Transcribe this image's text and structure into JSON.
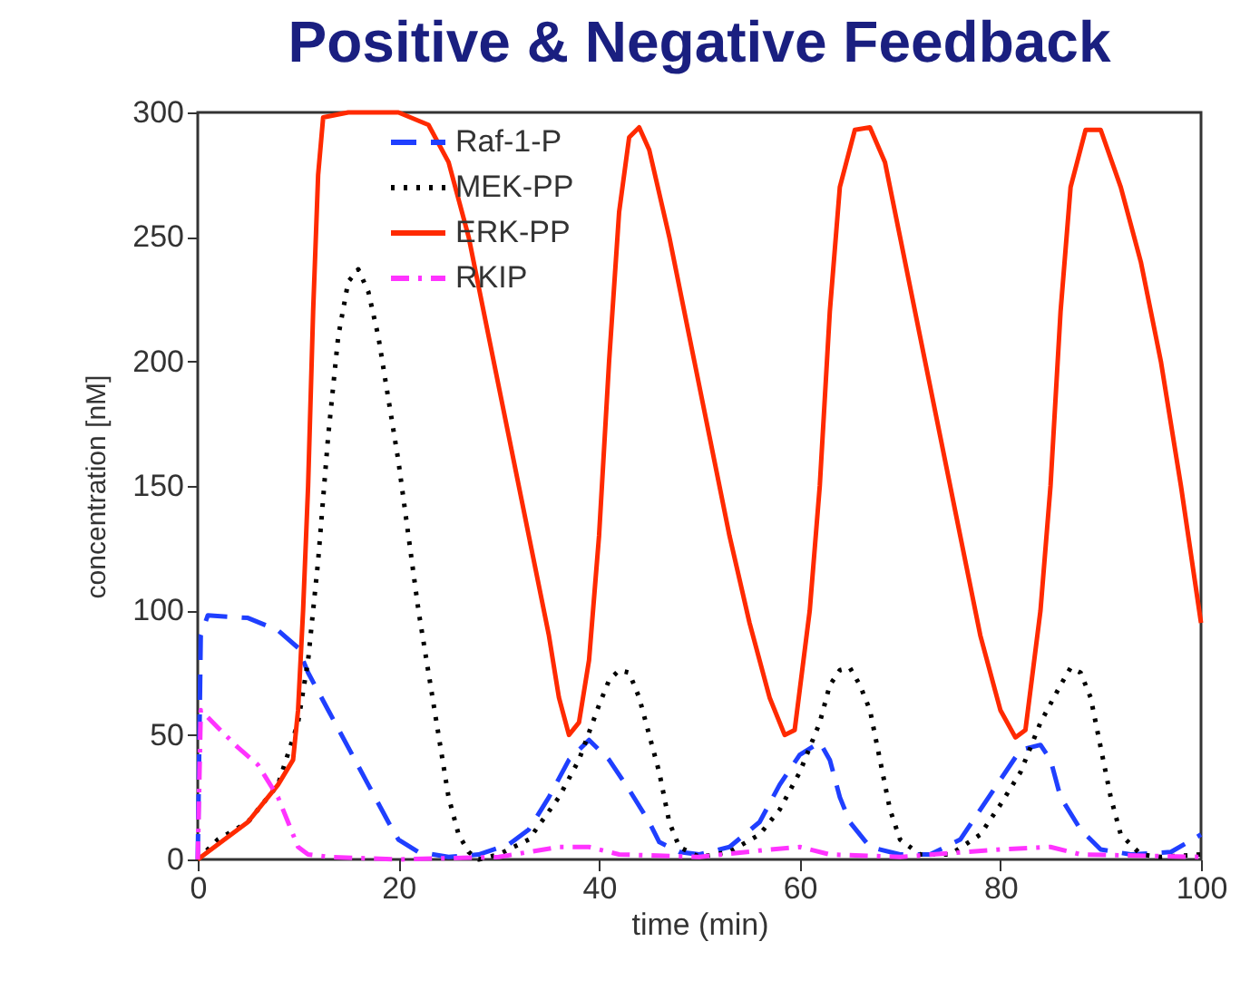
{
  "chart_data": {
    "type": "line",
    "title": "Positive & Negative Feedback",
    "xlabel": "time  (min)",
    "ylabel": "concentration [nM]",
    "xlim": [
      0,
      100
    ],
    "xticks": [
      0,
      20,
      40,
      60,
      80,
      100
    ],
    "ylim": [
      0,
      300
    ],
    "yticks": [
      0,
      50,
      100,
      150,
      200,
      250,
      300
    ],
    "grid": false,
    "legend": "top",
    "marker": "none",
    "series": [
      {
        "name": "Raf-1-P",
        "color": "#1f3fff",
        "line_style": "dashed",
        "x": [
          0,
          0.3,
          1,
          5,
          8,
          10,
          11,
          13,
          15,
          17,
          19,
          20,
          22,
          25,
          28,
          31,
          33,
          35,
          37,
          39,
          41,
          43,
          45,
          46,
          48,
          50,
          53,
          56,
          58,
          60,
          62,
          63,
          64,
          65,
          67,
          70,
          73,
          76,
          78,
          80,
          82,
          84,
          85,
          86,
          88,
          90,
          93,
          97,
          100
        ],
        "values": [
          0,
          90,
          98,
          97,
          92,
          85,
          75,
          60,
          45,
          30,
          15,
          8,
          3,
          1,
          2,
          6,
          12,
          25,
          40,
          48,
          40,
          28,
          15,
          7,
          3,
          2,
          5,
          15,
          30,
          42,
          47,
          40,
          25,
          15,
          5,
          2,
          2,
          8,
          20,
          32,
          44,
          46,
          40,
          25,
          12,
          4,
          2,
          3,
          10
        ]
      },
      {
        "name": "MEK-PP",
        "color": "#000000",
        "line_style": "dotted",
        "x": [
          0,
          2,
          5,
          8,
          10,
          11,
          12,
          13,
          14,
          15,
          16,
          17,
          18,
          19,
          20,
          21,
          22,
          23,
          24,
          25,
          26,
          27,
          28,
          30,
          33,
          36,
          38,
          40,
          41,
          42,
          43,
          44,
          45,
          46,
          47,
          48,
          50,
          53,
          56,
          58,
          60,
          62,
          63,
          64,
          65,
          66,
          67,
          68,
          69,
          70,
          72,
          75,
          78,
          80,
          82,
          84,
          86,
          87,
          88,
          89,
          90,
          91,
          92,
          94,
          96,
          100
        ],
        "values": [
          0,
          8,
          15,
          30,
          55,
          80,
          120,
          170,
          210,
          232,
          237,
          228,
          210,
          185,
          160,
          130,
          100,
          75,
          50,
          25,
          10,
          3,
          0,
          2,
          8,
          25,
          40,
          62,
          72,
          76,
          75,
          65,
          50,
          35,
          15,
          5,
          1,
          3,
          10,
          20,
          35,
          55,
          70,
          76,
          77,
          70,
          60,
          40,
          20,
          8,
          2,
          2,
          10,
          22,
          35,
          55,
          70,
          77,
          75,
          65,
          45,
          25,
          10,
          2,
          1,
          2
        ]
      },
      {
        "name": "ERK-PP",
        "color": "#ff2a00",
        "line_style": "solid",
        "x": [
          0,
          5,
          8,
          9.5,
          10,
          10.5,
          11,
          11.5,
          12,
          12.5,
          15,
          20,
          23,
          25,
          27,
          29,
          31,
          33,
          35,
          36,
          37,
          38,
          39,
          40,
          41,
          42,
          43,
          44,
          45,
          47,
          49,
          51,
          53,
          55,
          57,
          58.5,
          59.5,
          61,
          62,
          63,
          64,
          65.5,
          67,
          68.5,
          70,
          72,
          74,
          76,
          78,
          80,
          81.5,
          82.5,
          84,
          85,
          86,
          87,
          88.5,
          90,
          92,
          94,
          96,
          98,
          100
        ],
        "values": [
          0,
          15,
          30,
          40,
          60,
          100,
          150,
          220,
          275,
          298,
          300,
          300,
          295,
          280,
          250,
          210,
          170,
          130,
          90,
          65,
          50,
          55,
          80,
          130,
          200,
          260,
          290,
          294,
          285,
          250,
          210,
          170,
          130,
          95,
          65,
          50,
          52,
          100,
          150,
          220,
          270,
          293,
          294,
          280,
          250,
          210,
          170,
          130,
          90,
          60,
          49,
          52,
          100,
          150,
          220,
          270,
          293,
          293,
          270,
          240,
          200,
          150,
          95
        ]
      },
      {
        "name": "RKIP",
        "color": "#ff33ff",
        "line_style": "dashdot",
        "x": [
          0,
          0.3,
          2,
          4,
          6,
          8,
          9,
          10,
          11,
          13,
          20,
          30,
          36,
          39,
          42,
          50,
          57,
          60,
          63,
          70,
          80,
          85,
          88,
          100
        ],
        "values": [
          0,
          60,
          53,
          45,
          38,
          25,
          15,
          5,
          2,
          1,
          0,
          1,
          5,
          5,
          2,
          1,
          4,
          5,
          2,
          1,
          4,
          5,
          2,
          1
        ]
      }
    ]
  }
}
